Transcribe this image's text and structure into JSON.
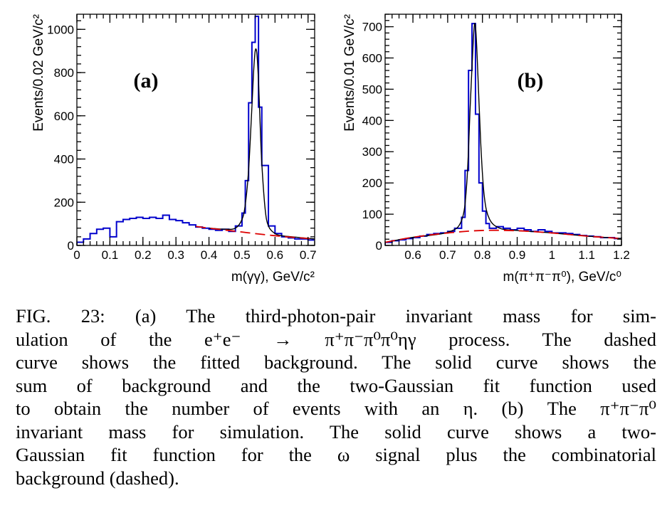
{
  "chart_data": [
    {
      "type": "histogram",
      "panel_label": "(a)",
      "xlabel": "m(γγ), GeV/c²",
      "ylabel": "Events/0.02 GeV/c²",
      "xlim": [
        0,
        0.72
      ],
      "ylim": [
        0,
        1070
      ],
      "xticks": [
        0,
        0.1,
        0.2,
        0.3,
        0.4,
        0.5,
        0.6,
        0.7
      ],
      "xtick_labels": [
        "0",
        "0.1",
        "0.2",
        "0.3",
        "0.4",
        "0.5",
        "0.6",
        "0.7"
      ],
      "yticks": [
        0,
        200,
        400,
        600,
        800,
        1000
      ],
      "ytick_labels": [
        "0",
        "200",
        "400",
        "600",
        "800",
        "1000"
      ],
      "hist_edges": [
        0,
        0.02,
        0.04,
        0.06,
        0.08,
        0.1,
        0.12,
        0.14,
        0.16,
        0.18,
        0.2,
        0.22,
        0.24,
        0.26,
        0.28,
        0.3,
        0.32,
        0.34,
        0.36,
        0.38,
        0.4,
        0.42,
        0.44,
        0.46,
        0.48,
        0.5,
        0.51,
        0.52,
        0.53,
        0.54,
        0.55,
        0.56,
        0.58,
        0.6,
        0.62,
        0.64,
        0.66,
        0.68,
        0.7,
        0.72
      ],
      "hist_values": [
        15,
        30,
        55,
        75,
        80,
        40,
        110,
        120,
        125,
        130,
        125,
        130,
        125,
        140,
        120,
        115,
        105,
        95,
        85,
        80,
        75,
        70,
        75,
        65,
        90,
        150,
        300,
        660,
        940,
        1060,
        640,
        370,
        90,
        55,
        40,
        35,
        30,
        30,
        25
      ],
      "background_fit": {
        "x": [
          0.36,
          0.4,
          0.45,
          0.5,
          0.55,
          0.6,
          0.65,
          0.72
        ],
        "y": [
          88,
          80,
          71,
          62,
          53,
          45,
          38,
          30
        ]
      },
      "total_fit": {
        "x": [
          0.4,
          0.45,
          0.48,
          0.5,
          0.51,
          0.52,
          0.53,
          0.535,
          0.54,
          0.545,
          0.55,
          0.555,
          0.56,
          0.57,
          0.58,
          0.6,
          0.62,
          0.65,
          0.72
        ],
        "y": [
          80,
          75,
          80,
          120,
          190,
          350,
          640,
          800,
          900,
          890,
          760,
          560,
          380,
          170,
          90,
          55,
          45,
          40,
          30
        ]
      }
    },
    {
      "type": "histogram",
      "panel_label": "(b)",
      "xlabel": "m(π⁺π⁻π⁰), GeV/c⁰",
      "ylabel": "Events/0.01 GeV/c²",
      "xlim": [
        0.52,
        1.2
      ],
      "ylim": [
        0,
        740
      ],
      "xticks": [
        0.6,
        0.7,
        0.8,
        0.9,
        1.0,
        1.1,
        1.2
      ],
      "xtick_labels": [
        "0.6",
        "0.7",
        "0.8",
        "0.9",
        "1",
        "1.1",
        "1.2"
      ],
      "yticks": [
        0,
        100,
        200,
        300,
        400,
        500,
        600,
        700
      ],
      "ytick_labels": [
        "0",
        "100",
        "200",
        "300",
        "400",
        "500",
        "600",
        "700"
      ],
      "hist_edges": [
        0.52,
        0.54,
        0.56,
        0.58,
        0.6,
        0.62,
        0.64,
        0.66,
        0.68,
        0.7,
        0.72,
        0.74,
        0.75,
        0.76,
        0.77,
        0.78,
        0.79,
        0.8,
        0.81,
        0.82,
        0.84,
        0.86,
        0.88,
        0.9,
        0.92,
        0.94,
        0.96,
        0.98,
        1.0,
        1.02,
        1.04,
        1.06,
        1.08,
        1.1,
        1.12,
        1.14,
        1.16,
        1.18,
        1.2
      ],
      "hist_values": [
        10,
        15,
        18,
        22,
        25,
        30,
        35,
        38,
        40,
        45,
        55,
        90,
        240,
        560,
        710,
        420,
        200,
        110,
        70,
        55,
        60,
        55,
        50,
        55,
        50,
        45,
        50,
        45,
        40,
        40,
        38,
        35,
        32,
        30,
        28,
        25,
        25,
        22
      ],
      "background_fit": {
        "x": [
          0.52,
          0.6,
          0.7,
          0.8,
          0.9,
          1.0,
          1.1,
          1.2
        ],
        "y": [
          10,
          26,
          40,
          48,
          47,
          40,
          30,
          22
        ]
      },
      "total_fit": {
        "x": [
          0.52,
          0.6,
          0.7,
          0.74,
          0.755,
          0.765,
          0.775,
          0.78,
          0.785,
          0.795,
          0.805,
          0.82,
          0.85,
          0.9,
          1.0,
          1.1,
          1.2
        ],
        "y": [
          10,
          26,
          42,
          80,
          200,
          450,
          680,
          700,
          600,
          330,
          160,
          85,
          55,
          48,
          40,
          30,
          22
        ]
      }
    }
  ],
  "caption": {
    "lines": [
      "FIG. 23:  (a)  The  third-photon-pair  invariant  mass  for  sim-",
      "ulation  of  the  e⁺e⁻  →  π⁺π⁻π⁰π⁰ηγ  process.   The  dashed",
      "curve shows the fitted background. The solid curve shows the",
      "sum  of  background  and  the  two-Gaussian  fit  function  used",
      "to  obtain  the  number  of  events  with  an  η.   (b)  The  π⁺π⁻π⁰",
      "invariant  mass  for  simulation.   The  solid  curve  shows  a  two-",
      "Gaussian  fit  function  for  the  ω  signal  plus  the  combinatorial",
      "background (dashed)."
    ]
  },
  "colors": {
    "histogram": "#0000cc",
    "total_fit": "#000000",
    "background_fit": "#dd0000"
  }
}
